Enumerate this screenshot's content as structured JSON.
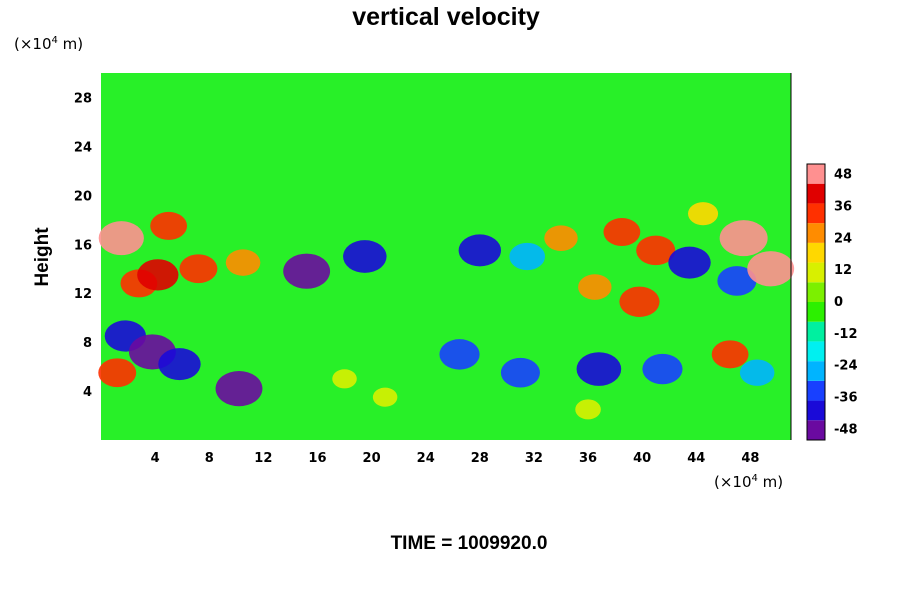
{
  "chart_data": {
    "type": "heatmap",
    "title": "vertical velocity",
    "ylabel": "Height",
    "xlabel": "",
    "x_unit_prefix": "(×10",
    "x_unit_exp": "4",
    "x_unit_suffix": " m)",
    "y_unit_prefix": "(×10",
    "y_unit_exp": "4",
    "y_unit_suffix": " m)",
    "xlim": [
      0,
      51
    ],
    "ylim": [
      0,
      30
    ],
    "xticks": [
      4,
      8,
      12,
      16,
      20,
      24,
      28,
      32,
      36,
      40,
      44,
      48
    ],
    "yticks": [
      4,
      8,
      12,
      16,
      20,
      24,
      28
    ],
    "colorbar": {
      "ticks": [
        48,
        36,
        24,
        12,
        0,
        -12,
        -24,
        -36,
        -48
      ],
      "range": [
        -52,
        52
      ],
      "colors": [
        "#6a0aa0",
        "#1a0ad8",
        "#1840ff",
        "#00b4ff",
        "#00f0f0",
        "#00f0a0",
        "#2cf000",
        "#7cf000",
        "#d8f000",
        "#ffd800",
        "#ff8c00",
        "#ff3000",
        "#e00000",
        "#ff9090"
      ]
    },
    "features": [
      {
        "x": 1.5,
        "y": 16.5,
        "value": 45
      },
      {
        "x": 2.8,
        "y": 12.8,
        "value": 30
      },
      {
        "x": 4.2,
        "y": 13.5,
        "value": 38
      },
      {
        "x": 5.0,
        "y": 17.5,
        "value": 30
      },
      {
        "x": 7.2,
        "y": 14.0,
        "value": 32
      },
      {
        "x": 10.5,
        "y": 14.5,
        "value": 26
      },
      {
        "x": 1.8,
        "y": 8.5,
        "value": -38
      },
      {
        "x": 3.8,
        "y": 7.2,
        "value": -48
      },
      {
        "x": 5.8,
        "y": 6.2,
        "value": -40
      },
      {
        "x": 1.2,
        "y": 5.5,
        "value": 32
      },
      {
        "x": 10.2,
        "y": 4.2,
        "value": -48
      },
      {
        "x": 15.2,
        "y": 13.8,
        "value": -48
      },
      {
        "x": 19.5,
        "y": 15.0,
        "value": -42
      },
      {
        "x": 28.0,
        "y": 15.5,
        "value": -40
      },
      {
        "x": 31.5,
        "y": 15.0,
        "value": -28
      },
      {
        "x": 26.5,
        "y": 7.0,
        "value": -36
      },
      {
        "x": 31.0,
        "y": 5.5,
        "value": -34
      },
      {
        "x": 36.8,
        "y": 5.8,
        "value": -44
      },
      {
        "x": 41.5,
        "y": 5.8,
        "value": -36
      },
      {
        "x": 36.5,
        "y": 12.5,
        "value": 24
      },
      {
        "x": 38.5,
        "y": 17.0,
        "value": 30
      },
      {
        "x": 41.0,
        "y": 15.5,
        "value": 34
      },
      {
        "x": 39.8,
        "y": 11.3,
        "value": 36
      },
      {
        "x": 43.5,
        "y": 14.5,
        "value": -40
      },
      {
        "x": 47.0,
        "y": 13.0,
        "value": -34
      },
      {
        "x": 47.5,
        "y": 16.5,
        "value": 50
      },
      {
        "x": 49.5,
        "y": 14.0,
        "value": 48
      },
      {
        "x": 46.5,
        "y": 7.0,
        "value": 30
      },
      {
        "x": 48.5,
        "y": 5.5,
        "value": -26
      },
      {
        "x": 36.0,
        "y": 2.5,
        "value": 10
      },
      {
        "x": 18.0,
        "y": 5.0,
        "value": 8
      },
      {
        "x": 21.0,
        "y": 3.5,
        "value": 8
      },
      {
        "x": 44.5,
        "y": 18.5,
        "value": 18
      },
      {
        "x": 34.0,
        "y": 16.5,
        "value": 24
      }
    ]
  },
  "footer": {
    "time_label": "TIME = 1009920.0"
  }
}
